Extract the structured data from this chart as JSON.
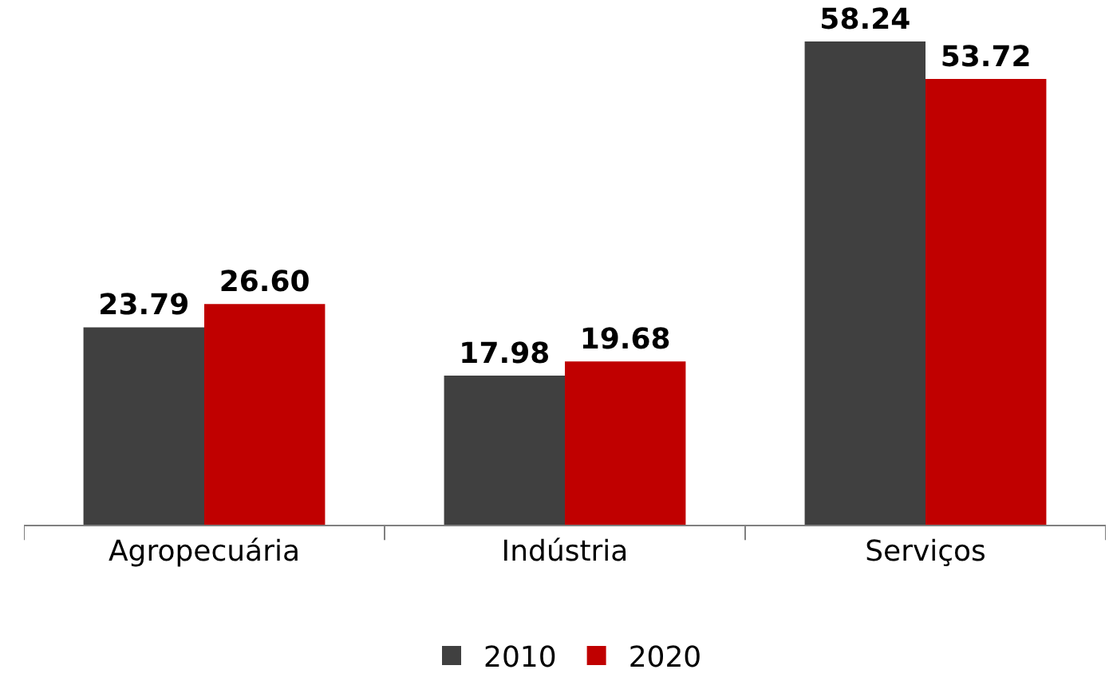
{
  "chart_data": {
    "type": "bar",
    "categories": [
      "Agropecuária",
      "Indústria",
      "Serviços"
    ],
    "series": [
      {
        "name": "2010",
        "color": "#404040",
        "values": [
          23.79,
          17.98,
          58.24
        ],
        "value_labels": [
          "23.79",
          "17.98",
          "58.24"
        ]
      },
      {
        "name": "2020",
        "color": "#c00000",
        "values": [
          26.6,
          19.68,
          53.72
        ],
        "value_labels": [
          "26.60",
          "19.68",
          "53.72"
        ]
      }
    ],
    "grid": false,
    "legend": "bottom"
  }
}
